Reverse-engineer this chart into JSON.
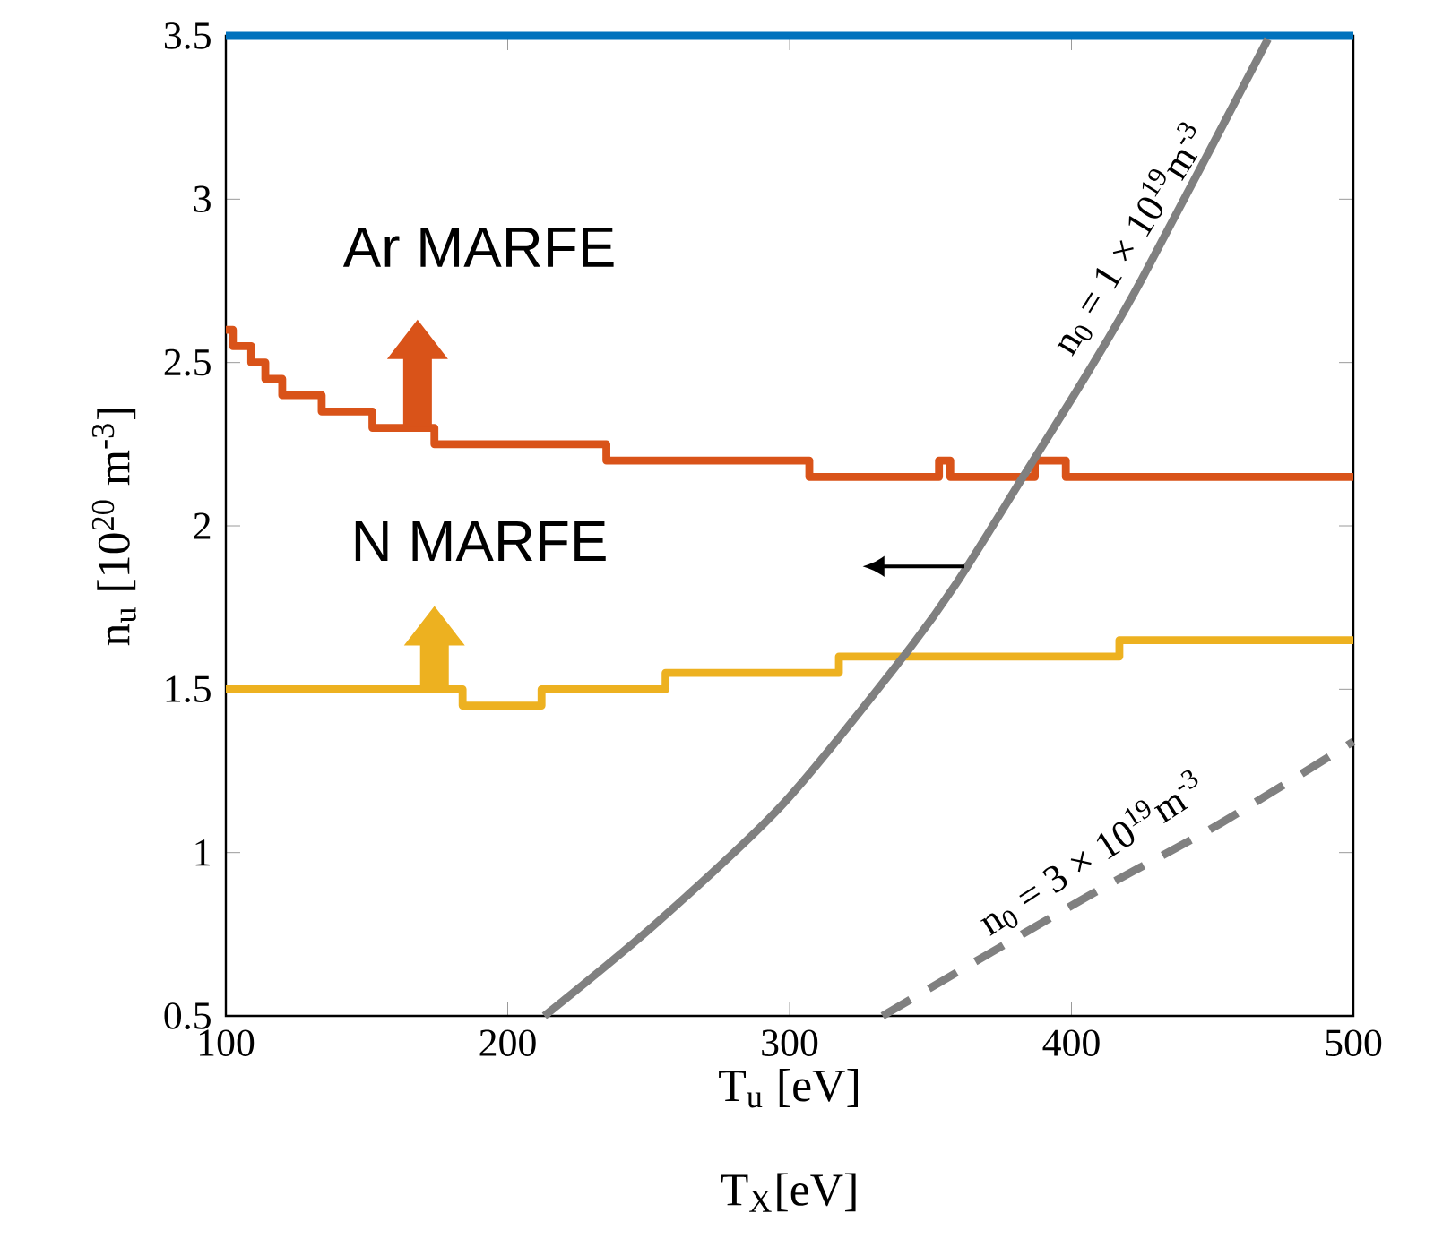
{
  "chart_data": {
    "type": "step",
    "xlabel": "T$_{u}$ [eV]",
    "ylabel": "n$_{u}$ [10$^{20}$ m$^{-3}$]",
    "xlim": [
      100,
      500
    ],
    "ylim": [
      0.5,
      3.5
    ],
    "xticks": [
      100,
      200,
      300,
      400,
      500
    ],
    "yticks": [
      0.5,
      1,
      1.5,
      2,
      2.5,
      3,
      3.5
    ],
    "grid": false,
    "series": [
      {
        "color": "#d95319",
        "x": [
          100,
          102.5,
          102.5,
          109,
          109,
          114,
          114,
          120,
          120,
          134,
          134,
          152,
          152,
          174,
          174,
          235,
          235,
          307,
          307,
          353,
          353,
          357,
          357,
          387,
          387,
          398,
          398,
          500
        ],
        "values": [
          2.6,
          2.6,
          2.55,
          2.55,
          2.5,
          2.5,
          2.45,
          2.45,
          2.4,
          2.4,
          2.35,
          2.35,
          2.3,
          2.3,
          2.25,
          2.25,
          2.2,
          2.2,
          2.15,
          2.15,
          2.2,
          2.2,
          2.15,
          2.15,
          2.2,
          2.2,
          2.15,
          2.15
        ]
      },
      {
        "color": "#edb120",
        "x": [
          100,
          184,
          184,
          212,
          212,
          256,
          256,
          317.5,
          317.5,
          417,
          417,
          500
        ],
        "values": [
          1.5,
          1.5,
          1.45,
          1.45,
          1.5,
          1.5,
          1.55,
          1.55,
          1.6,
          1.6,
          1.65,
          1.65
        ]
      },
      {
        "color": "#0072bd",
        "x": [
          100,
          500
        ],
        "values": [
          3.5,
          3.5
        ]
      },
      {
        "type": "line",
        "color": "#808080",
        "line_style": "solid",
        "x": [
          213,
          253,
          297.8,
          340.2,
          359,
          382.6,
          406,
          425,
          469.7
        ],
        "values": [
          0.5,
          0.786,
          1.15,
          1.598,
          1.822,
          2.147,
          2.472,
          2.756,
          3.49
        ]
      },
      {
        "type": "line",
        "color": "#808080",
        "line_style": "dashed",
        "x": [
          333,
          406,
          453,
          500
        ],
        "values": [
          0.5,
          0.867,
          1.09,
          1.34
        ]
      }
    ],
    "annotations": [
      "Ar MARFE",
      "N MARFE",
      "n$_{0}$ = 1 × 10$^{19}$m$^{-3}$",
      "n$_{0}$ = 3 × 10$^{19}$m$^{-3}$",
      "T$_{X}$[eV]"
    ]
  }
}
